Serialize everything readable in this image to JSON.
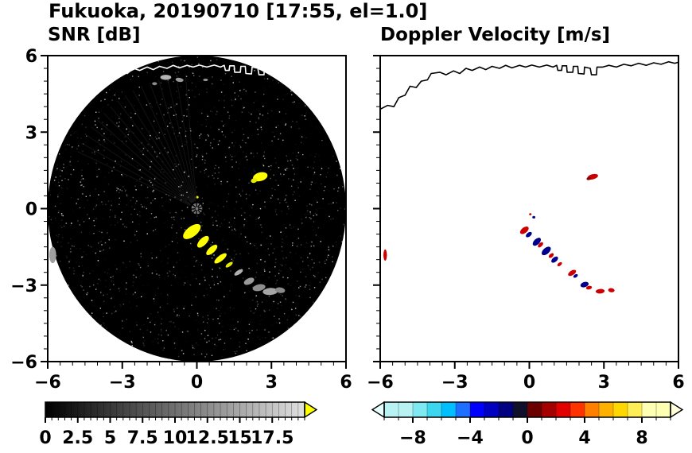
{
  "title": "Fukuoka, 20190710 [17:55, el=1.0]",
  "coastline": [
    [
      -6.0,
      3.9
    ],
    [
      -5.7,
      4.05
    ],
    [
      -5.45,
      4.0
    ],
    [
      -5.25,
      4.35
    ],
    [
      -5.0,
      4.45
    ],
    [
      -4.8,
      4.8
    ],
    [
      -4.55,
      4.75
    ],
    [
      -4.35,
      5.0
    ],
    [
      -4.1,
      5.05
    ],
    [
      -3.95,
      5.3
    ],
    [
      -3.6,
      5.35
    ],
    [
      -3.35,
      5.25
    ],
    [
      -3.05,
      5.4
    ],
    [
      -2.8,
      5.3
    ],
    [
      -2.55,
      5.5
    ],
    [
      -2.3,
      5.42
    ],
    [
      -2.0,
      5.55
    ],
    [
      -1.75,
      5.45
    ],
    [
      -1.5,
      5.58
    ],
    [
      -1.2,
      5.5
    ],
    [
      -0.95,
      5.62
    ],
    [
      -0.7,
      5.52
    ],
    [
      -0.4,
      5.62
    ],
    [
      -0.15,
      5.55
    ],
    [
      0.1,
      5.63
    ],
    [
      0.4,
      5.55
    ],
    [
      0.7,
      5.63
    ],
    [
      0.95,
      5.55
    ],
    [
      1.1,
      5.62
    ],
    [
      1.15,
      5.42
    ],
    [
      1.3,
      5.42
    ],
    [
      1.32,
      5.6
    ],
    [
      1.5,
      5.6
    ],
    [
      1.52,
      5.35
    ],
    [
      1.75,
      5.35
    ],
    [
      1.77,
      5.58
    ],
    [
      1.95,
      5.58
    ],
    [
      1.97,
      5.3
    ],
    [
      2.2,
      5.28
    ],
    [
      2.22,
      5.55
    ],
    [
      2.45,
      5.5
    ],
    [
      2.5,
      5.25
    ],
    [
      2.7,
      5.25
    ],
    [
      2.72,
      5.55
    ],
    [
      2.95,
      5.55
    ],
    [
      3.2,
      5.62
    ],
    [
      3.5,
      5.55
    ],
    [
      3.8,
      5.66
    ],
    [
      4.1,
      5.6
    ],
    [
      4.4,
      5.7
    ],
    [
      4.7,
      5.62
    ],
    [
      5.0,
      5.72
    ],
    [
      5.3,
      5.66
    ],
    [
      5.6,
      5.76
    ],
    [
      5.85,
      5.7
    ],
    [
      6.0,
      5.74
    ]
  ],
  "chart_data": [
    {
      "id": "snr",
      "type": "heatmap",
      "title": "SNR [dB]",
      "xlim": [
        -6,
        6
      ],
      "ylim": [
        -6,
        6
      ],
      "xticks": [
        -6,
        -3,
        0,
        3,
        6
      ],
      "xtick_labels": [
        "−6",
        "−3",
        "0",
        "3",
        "6"
      ],
      "yticks": [
        -6,
        -3,
        0,
        3,
        6
      ],
      "ytick_labels": [
        "−6",
        "−3",
        "0",
        "3",
        "6"
      ],
      "minor_tick_step": 0.5,
      "coast_color": "#ffffff",
      "scan_disk": {
        "cx": 0,
        "cy": 0,
        "r": 6,
        "color": "#000000"
      },
      "center_dot": {
        "r": 0.22,
        "color": "#787878"
      },
      "spokes": [
        20,
        55,
        95,
        140,
        185,
        225,
        265,
        310,
        345
      ],
      "rays": {
        "from_deg": 95,
        "to_deg": 155,
        "step": 4,
        "len": 5.3,
        "alpha": 0.07
      },
      "noise": {
        "seed": 20190710,
        "count": 2400,
        "color": "#ffffff",
        "max_alpha": 0.85
      },
      "blobs": [
        {
          "x": 2.55,
          "y": 1.25,
          "rx": 0.3,
          "ry": 0.17,
          "rot": -15,
          "color": "#ffff00"
        },
        {
          "x": 2.3,
          "y": 1.1,
          "rx": 0.13,
          "ry": 0.09,
          "rot": -15,
          "color": "#e8e800"
        },
        {
          "x": 0.0,
          "y": 0.45,
          "rx": 0.07,
          "ry": 0.05,
          "rot": 0,
          "color": "#f0f000"
        },
        {
          "x": -0.2,
          "y": -0.9,
          "rx": 0.42,
          "ry": 0.2,
          "rot": -38,
          "color": "#ffff00"
        },
        {
          "x": 0.25,
          "y": -1.3,
          "rx": 0.3,
          "ry": 0.14,
          "rot": -45,
          "color": "#ffff00"
        },
        {
          "x": 0.6,
          "y": -1.62,
          "rx": 0.28,
          "ry": 0.12,
          "rot": -42,
          "color": "#ffff00"
        },
        {
          "x": 0.95,
          "y": -1.95,
          "rx": 0.3,
          "ry": 0.11,
          "rot": -38,
          "color": "#ffff00"
        },
        {
          "x": 1.3,
          "y": -2.2,
          "rx": 0.17,
          "ry": 0.07,
          "rot": -35,
          "color": "#e6e600"
        },
        {
          "x": 1.68,
          "y": -2.5,
          "rx": 0.2,
          "ry": 0.08,
          "rot": -33,
          "color": "#b0b0b0"
        },
        {
          "x": 2.1,
          "y": -2.85,
          "rx": 0.22,
          "ry": 0.12,
          "rot": -25,
          "color": "#9a9a9a"
        },
        {
          "x": 2.5,
          "y": -3.1,
          "rx": 0.26,
          "ry": 0.13,
          "rot": -12,
          "color": "#8f8f8f"
        },
        {
          "x": 2.95,
          "y": -3.25,
          "rx": 0.3,
          "ry": 0.14,
          "rot": -4,
          "color": "#a5a5a5"
        },
        {
          "x": 3.35,
          "y": -3.2,
          "rx": 0.2,
          "ry": 0.11,
          "rot": 8,
          "color": "#8a8a8a"
        },
        {
          "x": -5.8,
          "y": -1.82,
          "rx": 0.14,
          "ry": 0.32,
          "rot": 0,
          "color": "#9f9f9f"
        },
        {
          "x": -1.25,
          "y": 5.15,
          "rx": 0.22,
          "ry": 0.1,
          "rot": 0,
          "color": "#b4b4b4"
        },
        {
          "x": -0.7,
          "y": 5.05,
          "rx": 0.16,
          "ry": 0.08,
          "rot": 10,
          "color": "#9a9a9a"
        },
        {
          "x": -1.7,
          "y": 4.9,
          "rx": 0.1,
          "ry": 0.06,
          "rot": 0,
          "color": "#8c8c8c"
        },
        {
          "x": 0.35,
          "y": 5.05,
          "rx": 0.1,
          "ry": 0.05,
          "rot": 0,
          "color": "#909090"
        }
      ],
      "colorbar": {
        "range": [
          0,
          20
        ],
        "ticks": [
          0,
          2.5,
          5,
          7.5,
          10,
          12.5,
          15,
          17.5
        ],
        "tick_labels": [
          "0",
          "2.5",
          "5",
          "7.5",
          "10",
          "12.5",
          "15",
          "17.5"
        ],
        "minor_step": 0.5,
        "gradient": [
          "#000000",
          "#e0e0e0"
        ],
        "over_color": "#ffff00"
      }
    },
    {
      "id": "doppler",
      "type": "heatmap",
      "title": "Doppler Velocity [m/s]",
      "xlim": [
        -6,
        6
      ],
      "ylim": [
        -6,
        6
      ],
      "xticks": [
        -6,
        -3,
        0,
        3,
        6
      ],
      "xtick_labels": [
        "−6",
        "−3",
        "0",
        "3",
        "6"
      ],
      "yticks": [
        -6,
        -3,
        0,
        3,
        6
      ],
      "ytick_labels": [],
      "minor_tick_step": 0.5,
      "coast_color": "#000000",
      "cells": [
        {
          "x": 2.55,
          "y": 1.25,
          "rx": 0.22,
          "ry": 0.1,
          "rot": -15,
          "color": "#cc0000"
        },
        {
          "x": 2.4,
          "y": 1.18,
          "rx": 0.1,
          "ry": 0.06,
          "rot": -15,
          "color": "#8b0000"
        },
        {
          "x": -0.2,
          "y": -0.85,
          "rx": 0.2,
          "ry": 0.11,
          "rot": -38,
          "color": "#cc0000"
        },
        {
          "x": -0.02,
          "y": -1.02,
          "rx": 0.14,
          "ry": 0.08,
          "rot": -38,
          "color": "#00008b"
        },
        {
          "x": 0.3,
          "y": -1.3,
          "rx": 0.2,
          "ry": 0.11,
          "rot": -44,
          "color": "#00008b"
        },
        {
          "x": 0.45,
          "y": -1.42,
          "rx": 0.13,
          "ry": 0.07,
          "rot": -44,
          "color": "#cc0000"
        },
        {
          "x": 0.68,
          "y": -1.66,
          "rx": 0.22,
          "ry": 0.12,
          "rot": -42,
          "color": "#00008b"
        },
        {
          "x": 0.88,
          "y": -1.84,
          "rx": 0.12,
          "ry": 0.07,
          "rot": -42,
          "color": "#cc0000"
        },
        {
          "x": 1.02,
          "y": -2.0,
          "rx": 0.16,
          "ry": 0.09,
          "rot": -40,
          "color": "#00008b"
        },
        {
          "x": 1.22,
          "y": -2.18,
          "rx": 0.11,
          "ry": 0.06,
          "rot": -38,
          "color": "#cc0000"
        },
        {
          "x": 1.72,
          "y": -2.52,
          "rx": 0.18,
          "ry": 0.09,
          "rot": -32,
          "color": "#cc0000"
        },
        {
          "x": 1.86,
          "y": -2.64,
          "rx": 0.1,
          "ry": 0.06,
          "rot": -32,
          "color": "#00008b"
        },
        {
          "x": 2.22,
          "y": -2.98,
          "rx": 0.17,
          "ry": 0.1,
          "rot": -18,
          "color": "#00008b"
        },
        {
          "x": 2.4,
          "y": -3.1,
          "rx": 0.12,
          "ry": 0.07,
          "rot": -12,
          "color": "#cc0000"
        },
        {
          "x": 2.85,
          "y": -3.24,
          "rx": 0.18,
          "ry": 0.09,
          "rot": -4,
          "color": "#cc0000"
        },
        {
          "x": 3.3,
          "y": -3.2,
          "rx": 0.13,
          "ry": 0.08,
          "rot": 8,
          "color": "#cc0000"
        },
        {
          "x": -5.8,
          "y": -1.82,
          "rx": 0.07,
          "ry": 0.22,
          "rot": 0,
          "color": "#cc0000"
        },
        {
          "x": 0.18,
          "y": -0.34,
          "rx": 0.06,
          "ry": 0.05,
          "rot": 0,
          "color": "#00008b"
        },
        {
          "x": 0.04,
          "y": -0.22,
          "rx": 0.05,
          "ry": 0.04,
          "rot": 0,
          "color": "#cc0000"
        }
      ],
      "colorbar": {
        "range": [
          -10,
          10
        ],
        "ticks": [
          -8,
          -4,
          0,
          4,
          8
        ],
        "tick_labels": [
          "−8",
          "−4",
          "0",
          "4",
          "8"
        ],
        "minor_step": 1,
        "segments": [
          {
            "v0": -10,
            "v1": -8,
            "c": "#b9f2f2"
          },
          {
            "v0": -8,
            "v1": -7,
            "c": "#7fe9f2"
          },
          {
            "v0": -7,
            "v1": -6,
            "c": "#3cd6f0"
          },
          {
            "v0": -6,
            "v1": -5,
            "c": "#00bfff"
          },
          {
            "v0": -5,
            "v1": -4,
            "c": "#1e6eff"
          },
          {
            "v0": -4,
            "v1": -3,
            "c": "#0000ff"
          },
          {
            "v0": -3,
            "v1": -2,
            "c": "#0000c0"
          },
          {
            "v0": -2,
            "v1": -1,
            "c": "#000080"
          },
          {
            "v0": -1,
            "v1": 0,
            "c": "#10102a"
          },
          {
            "v0": 0,
            "v1": 1,
            "c": "#6b0000"
          },
          {
            "v0": 1,
            "v1": 2,
            "c": "#a50000"
          },
          {
            "v0": 2,
            "v1": 3,
            "c": "#e00000"
          },
          {
            "v0": 3,
            "v1": 4,
            "c": "#ff3300"
          },
          {
            "v0": 4,
            "v1": 5,
            "c": "#ff8000"
          },
          {
            "v0": 5,
            "v1": 6,
            "c": "#ffb000"
          },
          {
            "v0": 6,
            "v1": 7,
            "c": "#ffd700"
          },
          {
            "v0": 7,
            "v1": 8,
            "c": "#ffee55"
          },
          {
            "v0": 8,
            "v1": 10,
            "c": "#ffffb3"
          }
        ],
        "under_color": "#e8ffff",
        "over_color": "#ffffd9"
      }
    }
  ]
}
